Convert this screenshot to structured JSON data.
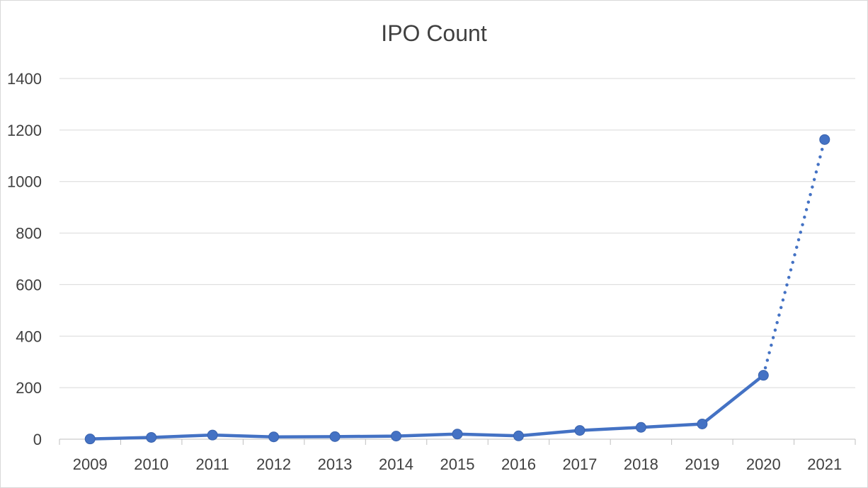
{
  "chart_data": {
    "type": "line",
    "title": "IPO Count",
    "xlabel": "",
    "ylabel": "",
    "categories": [
      "2009",
      "2010",
      "2011",
      "2012",
      "2013",
      "2014",
      "2015",
      "2016",
      "2017",
      "2018",
      "2019",
      "2020",
      "2021"
    ],
    "series": [
      {
        "values": [
          1,
          7,
          16,
          9,
          10,
          12,
          20,
          13,
          34,
          46,
          59,
          248,
          1163
        ],
        "color": "#4472C4",
        "dotted_last_segment": true
      }
    ],
    "ylim": [
      0,
      1400
    ],
    "yticks": [
      0,
      200,
      400,
      600,
      800,
      1000,
      1200,
      1400
    ],
    "grid": true,
    "legend": "none"
  }
}
